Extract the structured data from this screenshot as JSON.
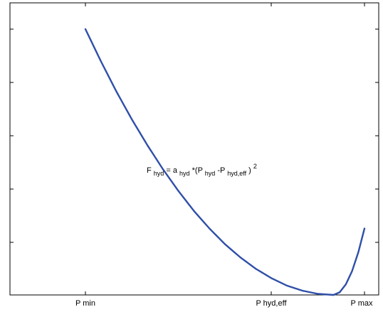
{
  "chart_data": {
    "type": "line",
    "title": "",
    "xlabel": "",
    "ylabel": "",
    "x_ticks": [
      "P min",
      "P hyd,eff",
      "P max"
    ],
    "annotation": {
      "F": "F",
      "hyd_sub_1": "hyd",
      "eq_a": " = a",
      "hyd_sub_2": "hyd",
      "open": "*(P",
      "hyd_sub_3": "hyd",
      "minus": "-P",
      "hydeff_sub": "hyd,eff",
      "close": ")",
      "power": "2"
    },
    "grid": false,
    "xlim": [
      0,
      1.1
    ],
    "ylim": [
      0,
      1.05
    ],
    "series": [
      {
        "color": "#2F4FA8",
        "x": [
          0.2,
          0.25,
          0.3,
          0.35,
          0.4,
          0.45,
          0.5,
          0.55,
          0.6,
          0.65,
          0.7,
          0.75,
          0.8,
          0.85,
          0.9,
          0.95,
          1.0
        ],
        "values": [
          1.0,
          0.879,
          0.765,
          0.66,
          0.563,
          0.473,
          0.391,
          0.316,
          0.25,
          0.191,
          0.141,
          0.098,
          0.063,
          0.035,
          0.016,
          0.004,
          0.0
        ]
      },
      {
        "color": "#2F4FA8",
        "x": [
          1.0,
          1.02,
          1.04,
          1.06,
          1.08,
          1.1
        ],
        "values": [
          0.0,
          0.01,
          0.04,
          0.09,
          0.16,
          0.25
        ]
      }
    ]
  }
}
